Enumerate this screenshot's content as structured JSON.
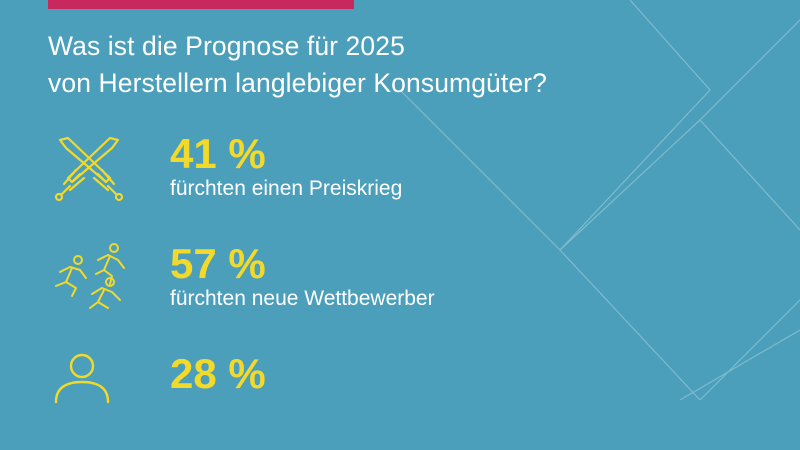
{
  "headline": {
    "line1": "Was ist die Prognose für 2025",
    "line2": "von Herstellern langlebiger Konsumgüter?"
  },
  "colors": {
    "background": "#4b9fba",
    "accent_bar": "#c7295e",
    "highlight": "#f3d92a",
    "text": "#ffffff"
  },
  "stats": [
    {
      "value": "41 %",
      "label": "fürchten einen Preiskrieg",
      "icon": "crossed-swords-icon"
    },
    {
      "value": "57 %",
      "label": "fürchten neue Wettbewerber",
      "icon": "running-people-icon"
    },
    {
      "value": "28 %",
      "label": "",
      "icon": "person-icon"
    }
  ]
}
